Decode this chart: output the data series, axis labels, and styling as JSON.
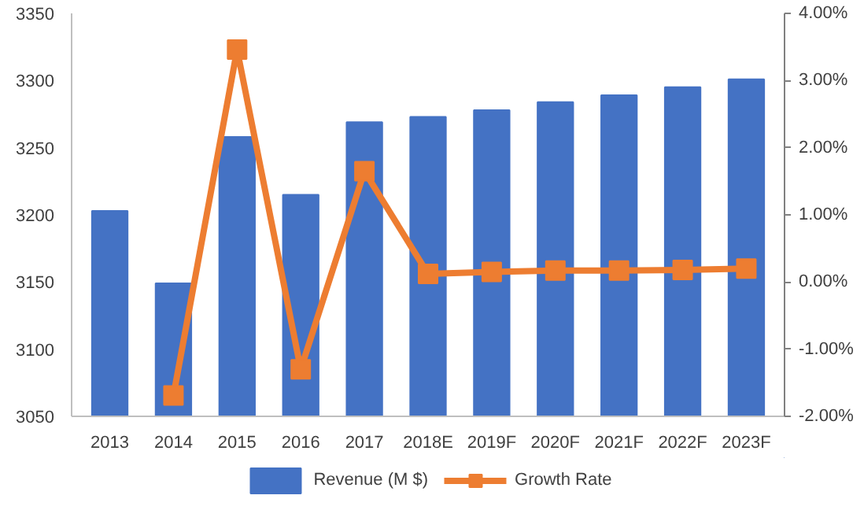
{
  "chart_data": {
    "type": "bar",
    "categories": [
      "2013",
      "2014",
      "2015",
      "2016",
      "2017",
      "2018E",
      "2019F",
      "2020F",
      "2021F",
      "2022F",
      "2023F"
    ],
    "series": [
      {
        "name": "Revenue (M $)",
        "color": "#4472c4",
        "values": [
          3203,
          3149,
          3258,
          3215,
          3269,
          3273,
          3278,
          3284,
          3289,
          3295,
          3301
        ]
      },
      {
        "name": "Growth Rate",
        "type": "line",
        "axis": "y2",
        "color": "#ed7d31",
        "marker": "square",
        "values": [
          null,
          -1.69,
          3.46,
          -1.3,
          1.65,
          0.12,
          0.15,
          0.17,
          0.17,
          0.18,
          0.2
        ]
      }
    ],
    "ylim": [
      3050,
      3350
    ],
    "yticks": [
      3050,
      3100,
      3150,
      3200,
      3250,
      3300,
      3350
    ],
    "y2lim": [
      -2,
      4
    ],
    "y2ticks": [
      {
        "value": -2,
        "label": "-2.00%"
      },
      {
        "value": -1,
        "label": "-1.00%"
      },
      {
        "value": 0,
        "label": "0.00%"
      },
      {
        "value": 1,
        "label": "1.00%"
      },
      {
        "value": 2,
        "label": "2.00%"
      },
      {
        "value": 3,
        "label": "3.00%"
      },
      {
        "value": 4,
        "label": "4.00%"
      }
    ],
    "grid": false,
    "legend": "bottom"
  }
}
